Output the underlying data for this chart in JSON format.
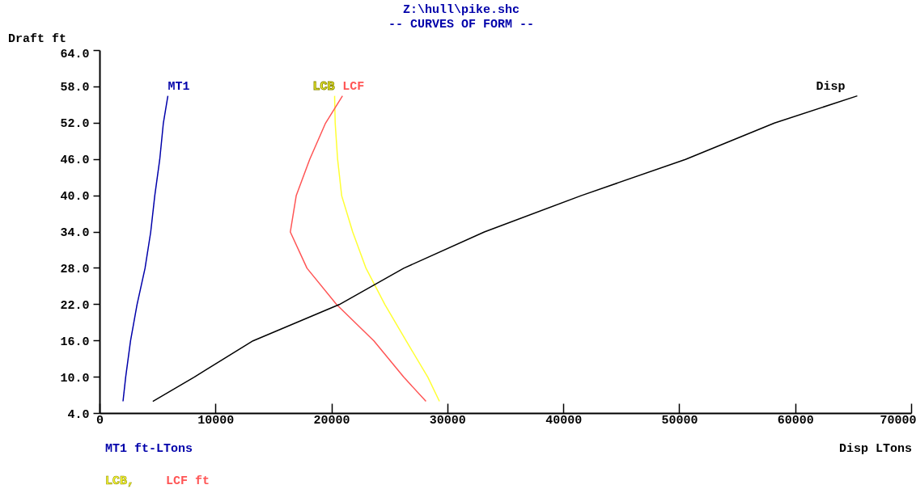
{
  "chart_data": {
    "type": "line",
    "title": "Z:\\hull\\pike.shc",
    "subtitle": "-- CURVES OF FORM --",
    "ylabel": "Draft ft",
    "xlabel": "Disp LTons",
    "annotations": [
      "MT1 ft-LTons",
      "LCB,",
      "LCF ft"
    ],
    "series": [
      {
        "name": "MT1",
        "color": "#0000aa",
        "x": [
          1990,
          2220,
          2640,
          3200,
          3890,
          4380,
          4730,
          5160,
          5470,
          5860
        ],
        "values": [
          6,
          10,
          16,
          22,
          28,
          34,
          40,
          46,
          52,
          56.5
        ]
      },
      {
        "name": "LCB",
        "color": "#ffff33",
        "x": [
          29280,
          28280,
          26410,
          24580,
          22950,
          21800,
          20850,
          20500,
          20290,
          20240
        ],
        "values": [
          6,
          10,
          16,
          22,
          28,
          34,
          40,
          46,
          52,
          56.5
        ]
      },
      {
        "name": "LCF",
        "color": "#ff5555",
        "x": [
          28120,
          26200,
          23630,
          20410,
          17860,
          16420,
          16930,
          18090,
          19460,
          20920
        ],
        "values": [
          6,
          10,
          16,
          22,
          28,
          34,
          40,
          46,
          52,
          56.5
        ]
      },
      {
        "name": "Disp",
        "color": "#000000",
        "x": [
          4560,
          8130,
          13200,
          20640,
          26200,
          33150,
          41490,
          50500,
          58170,
          65320
        ],
        "values": [
          6,
          10,
          16,
          22,
          28,
          34,
          40,
          46,
          52,
          56.5
        ]
      }
    ],
    "xlim": [
      0,
      70000
    ],
    "xticks": [
      0,
      10000,
      20000,
      30000,
      40000,
      50000,
      60000,
      70000
    ],
    "ylim": [
      4,
      64
    ],
    "yticks": [
      {
        "value": 4,
        "label": "4.0"
      },
      {
        "value": 10,
        "label": "10.0"
      },
      {
        "value": 16,
        "label": "16.0"
      },
      {
        "value": 22,
        "label": "22.0"
      },
      {
        "value": 28,
        "label": "28.0"
      },
      {
        "value": 34,
        "label": "34.0"
      },
      {
        "value": 40,
        "label": "40.0"
      },
      {
        "value": 46,
        "label": "46.0"
      },
      {
        "value": 52,
        "label": "52.0"
      },
      {
        "value": 58,
        "label": "58.0"
      },
      {
        "value": 64,
        "label": "64.0"
      }
    ],
    "grid": false,
    "legend": false,
    "marker": "none",
    "line_style": "solid"
  }
}
